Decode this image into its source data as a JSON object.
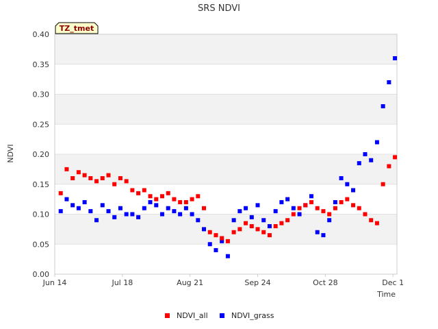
{
  "chart_data": {
    "type": "scatter",
    "title": "SRS NDVI",
    "xlabel": "Time",
    "ylabel": "NDVI",
    "timezone_badge": "TZ_tmet",
    "ylim": [
      0.0,
      0.4
    ],
    "xlim": [
      "2019-06-14",
      "2019-12-03"
    ],
    "x_ticks": [
      "Jun 14",
      "Jul 18",
      "Aug 21",
      "Sep 24",
      "Oct 28",
      "Dec 1"
    ],
    "x_tick_days": [
      0,
      34,
      68,
      102,
      136,
      170
    ],
    "y_ticks": [
      "0.00",
      "0.05",
      "0.10",
      "0.15",
      "0.20",
      "0.25",
      "0.30",
      "0.35",
      "0.40"
    ],
    "grid": true,
    "legend_position": "bottom",
    "series": [
      {
        "name": "NDVI_all",
        "color": "#ff0000",
        "x": [
          "2019-06-17",
          "2019-06-20",
          "2019-06-23",
          "2019-06-26",
          "2019-06-29",
          "2019-07-02",
          "2019-07-05",
          "2019-07-08",
          "2019-07-11",
          "2019-07-14",
          "2019-07-17",
          "2019-07-20",
          "2019-07-23",
          "2019-07-26",
          "2019-07-29",
          "2019-08-01",
          "2019-08-04",
          "2019-08-07",
          "2019-08-10",
          "2019-08-13",
          "2019-08-16",
          "2019-08-19",
          "2019-08-22",
          "2019-08-25",
          "2019-08-28",
          "2019-08-31",
          "2019-09-03",
          "2019-09-06",
          "2019-09-09",
          "2019-09-12",
          "2019-09-15",
          "2019-09-18",
          "2019-09-21",
          "2019-09-24",
          "2019-09-27",
          "2019-09-30",
          "2019-10-03",
          "2019-10-06",
          "2019-10-09",
          "2019-10-12",
          "2019-10-15",
          "2019-10-18",
          "2019-10-21",
          "2019-10-24",
          "2019-10-27",
          "2019-10-30",
          "2019-11-02",
          "2019-11-05",
          "2019-11-08",
          "2019-11-11",
          "2019-11-14",
          "2019-11-17",
          "2019-11-20",
          "2019-11-23",
          "2019-11-26",
          "2019-11-29",
          "2019-12-02"
        ],
        "y": [
          0.135,
          0.175,
          0.16,
          0.17,
          0.165,
          0.16,
          0.155,
          0.16,
          0.165,
          0.15,
          0.16,
          0.155,
          0.14,
          0.135,
          0.14,
          0.13,
          0.125,
          0.13,
          0.135,
          0.125,
          0.12,
          0.12,
          0.125,
          0.13,
          0.11,
          0.07,
          0.065,
          0.06,
          0.055,
          0.07,
          0.075,
          0.085,
          0.08,
          0.075,
          0.07,
          0.065,
          0.08,
          0.085,
          0.09,
          0.1,
          0.11,
          0.115,
          0.12,
          0.11,
          0.105,
          0.1,
          0.11,
          0.12,
          0.125,
          0.115,
          0.11,
          0.1,
          0.09,
          0.085,
          0.15,
          0.18,
          0.195
        ]
      },
      {
        "name": "NDVI_grass",
        "color": "#0000ff",
        "x": [
          "2019-06-17",
          "2019-06-20",
          "2019-06-23",
          "2019-06-26",
          "2019-06-29",
          "2019-07-02",
          "2019-07-05",
          "2019-07-08",
          "2019-07-11",
          "2019-07-14",
          "2019-07-17",
          "2019-07-20",
          "2019-07-23",
          "2019-07-26",
          "2019-07-29",
          "2019-08-01",
          "2019-08-04",
          "2019-08-07",
          "2019-08-10",
          "2019-08-13",
          "2019-08-16",
          "2019-08-19",
          "2019-08-22",
          "2019-08-25",
          "2019-08-28",
          "2019-08-31",
          "2019-09-03",
          "2019-09-06",
          "2019-09-09",
          "2019-09-12",
          "2019-09-15",
          "2019-09-18",
          "2019-09-21",
          "2019-09-24",
          "2019-09-27",
          "2019-09-30",
          "2019-10-03",
          "2019-10-06",
          "2019-10-09",
          "2019-10-12",
          "2019-10-15",
          "2019-10-18",
          "2019-10-21",
          "2019-10-24",
          "2019-10-27",
          "2019-10-30",
          "2019-11-02",
          "2019-11-05",
          "2019-11-08",
          "2019-11-11",
          "2019-11-14",
          "2019-11-17",
          "2019-11-20",
          "2019-11-23",
          "2019-11-26",
          "2019-11-29",
          "2019-12-02"
        ],
        "y": [
          0.105,
          0.125,
          0.115,
          0.11,
          0.12,
          0.105,
          0.09,
          0.115,
          0.105,
          0.095,
          0.11,
          0.1,
          0.1,
          0.095,
          0.11,
          0.12,
          0.115,
          0.1,
          0.11,
          0.105,
          0.1,
          0.11,
          0.1,
          0.09,
          0.075,
          0.05,
          0.04,
          0.055,
          0.03,
          0.09,
          0.105,
          0.11,
          0.095,
          0.115,
          0.09,
          0.08,
          0.105,
          0.12,
          0.125,
          0.11,
          0.1,
          0.115,
          0.13,
          0.07,
          0.065,
          0.09,
          0.12,
          0.16,
          0.15,
          0.14,
          0.185,
          0.2,
          0.19,
          0.22,
          0.28,
          0.32,
          0.36
        ]
      }
    ]
  }
}
